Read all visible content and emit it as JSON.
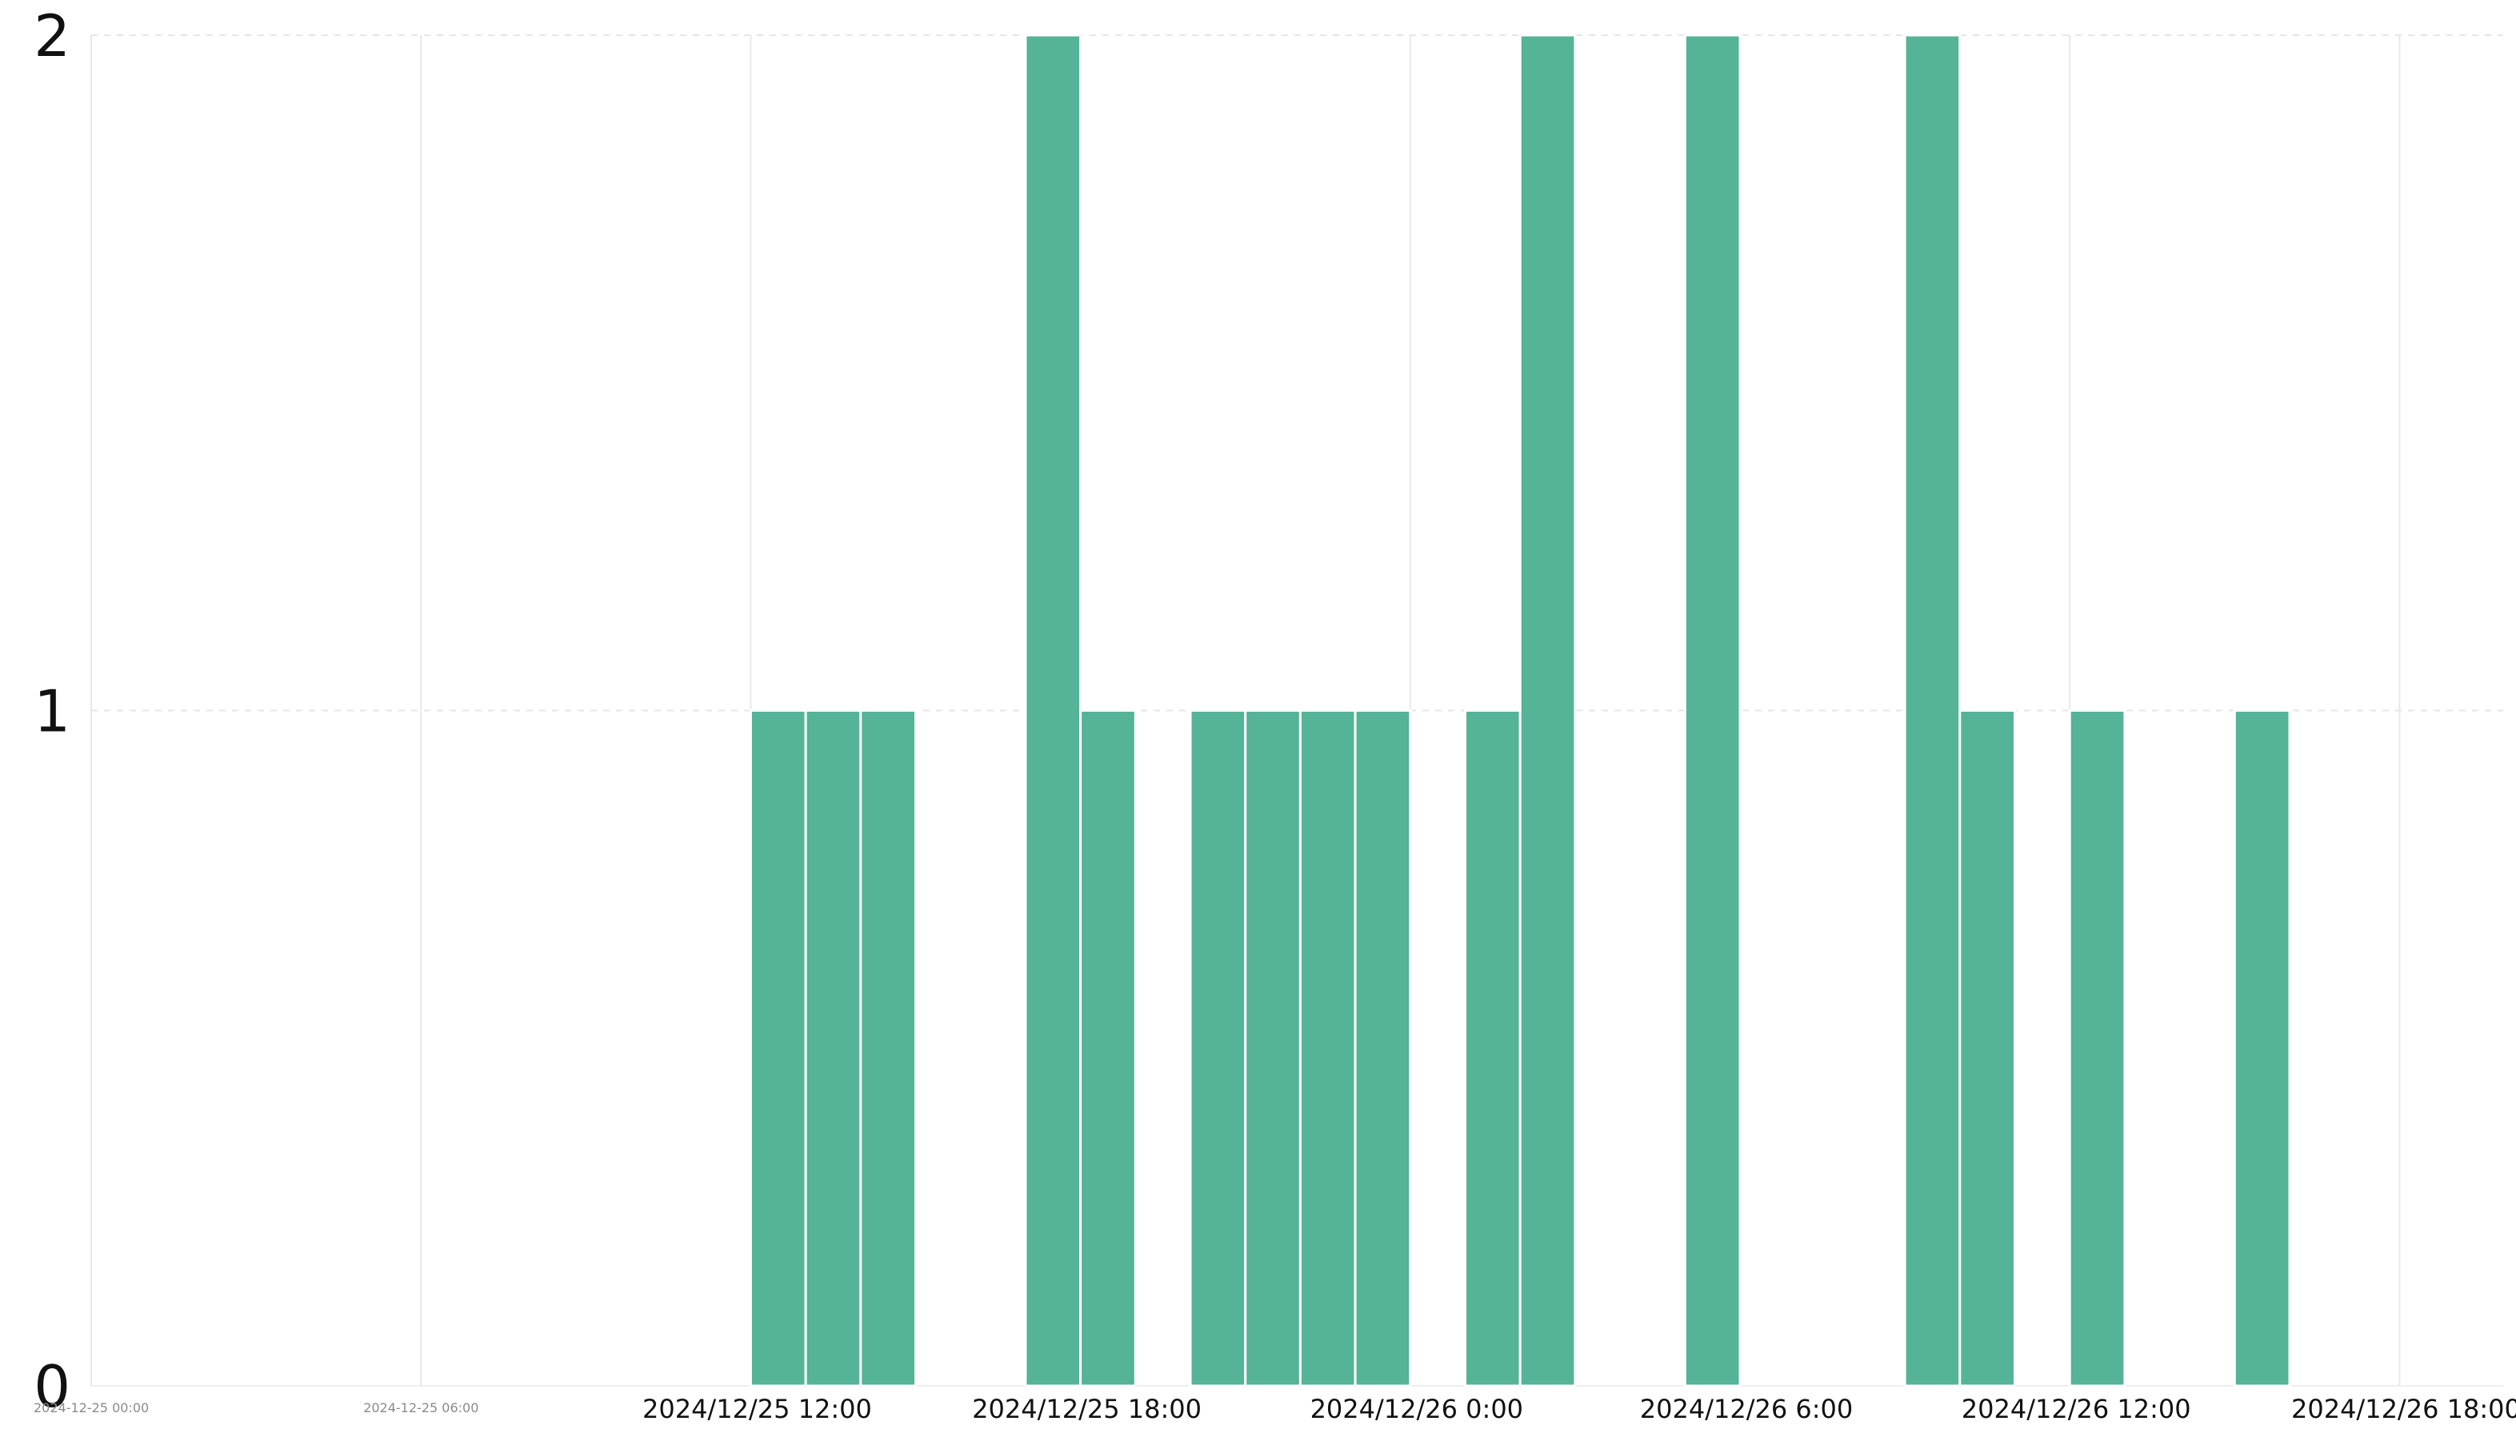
{
  "chart_data": {
    "type": "bar",
    "title": "",
    "xlabel": "",
    "ylabel": "",
    "bin_width_hours": 1,
    "x_range": [
      "2024-12-25 00:00",
      "2024-12-26 21:00"
    ],
    "ylim": [
      0,
      2
    ],
    "yticks": [
      0,
      1,
      2
    ],
    "grid": {
      "x": true,
      "y": true
    },
    "bar_color": "#55b398",
    "x_tick_labels": [
      {
        "at": "2024-12-25 00:00",
        "label": "2024-12-25 00:00",
        "style": "small"
      },
      {
        "at": "2024-12-25 06:00",
        "label": "2024-12-25 06:00",
        "style": "small"
      },
      {
        "at": "2024-12-25 12:00",
        "label": "2024/12/25 12:00",
        "style": "normal"
      },
      {
        "at": "2024-12-25 18:00",
        "label": "2024/12/25 18:00",
        "style": "normal"
      },
      {
        "at": "2024-12-26 00:00",
        "label": "2024/12/26 0:00",
        "style": "normal"
      },
      {
        "at": "2024-12-26 06:00",
        "label": "2024/12/26 6:00",
        "style": "normal"
      },
      {
        "at": "2024-12-26 12:00",
        "label": "2024/12/26 12:00",
        "style": "normal"
      },
      {
        "at": "2024-12-26 18:00",
        "label": "2024/12/26 18:00",
        "style": "normal"
      }
    ],
    "bars": [
      {
        "start": "2024-12-25 12:00",
        "value": 1
      },
      {
        "start": "2024-12-25 13:00",
        "value": 1
      },
      {
        "start": "2024-12-25 14:00",
        "value": 1
      },
      {
        "start": "2024-12-25 17:00",
        "value": 2
      },
      {
        "start": "2024-12-25 18:00",
        "value": 1
      },
      {
        "start": "2024-12-25 20:00",
        "value": 1
      },
      {
        "start": "2024-12-25 21:00",
        "value": 1
      },
      {
        "start": "2024-12-25 22:00",
        "value": 1
      },
      {
        "start": "2024-12-25 23:00",
        "value": 1
      },
      {
        "start": "2024-12-26 01:00",
        "value": 1
      },
      {
        "start": "2024-12-26 02:00",
        "value": 2
      },
      {
        "start": "2024-12-26 05:00",
        "value": 2
      },
      {
        "start": "2024-12-26 09:00",
        "value": 2
      },
      {
        "start": "2024-12-26 10:00",
        "value": 1
      },
      {
        "start": "2024-12-26 12:00",
        "value": 1
      },
      {
        "start": "2024-12-26 15:00",
        "value": 1
      }
    ]
  }
}
